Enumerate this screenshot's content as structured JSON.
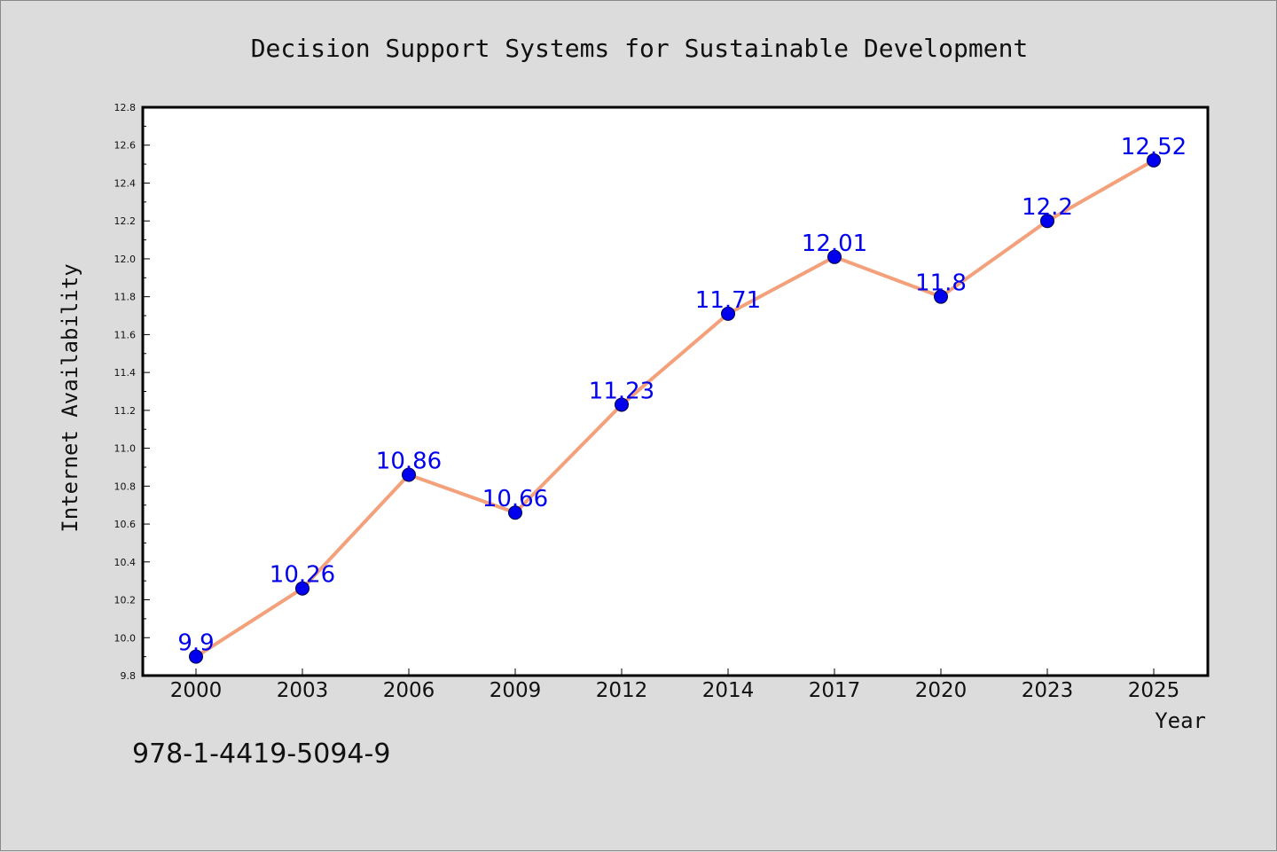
{
  "isbn": "978-1-4419-5094-9",
  "chart_data": {
    "type": "line",
    "title": "Decision Support Systems for Sustainable Development",
    "xlabel": "Year",
    "ylabel": "Internet Availability",
    "categories": [
      "2000",
      "2003",
      "2006",
      "2009",
      "2012",
      "2014",
      "2017",
      "2020",
      "2023",
      "2025"
    ],
    "series": [
      {
        "values": [
          9.9,
          10.26,
          10.86,
          10.66,
          11.23,
          11.71,
          12.01,
          11.8,
          12.2,
          12.52
        ],
        "data_labels": [
          "9.9",
          "10.26",
          "10.86",
          "10.66",
          "11.23",
          "11.71",
          "12.01",
          "11.8",
          "12.2",
          "12.52"
        ]
      }
    ],
    "ylim": [
      9.8,
      12.8
    ],
    "yticks": [
      "9.8",
      "10.0",
      "10.2",
      "10.4",
      "10.6",
      "10.8",
      "11.0",
      "11.2",
      "11.4",
      "11.6",
      "11.8",
      "12.0",
      "12.2",
      "12.4",
      "12.6",
      "12.8"
    ],
    "grid": false,
    "legend": "none",
    "colors": {
      "line": "#f4a07a",
      "marker": "#0000ee",
      "data_label": "#0000ee",
      "background": "#dcdcdc",
      "plot_area": "#ffffff"
    }
  }
}
